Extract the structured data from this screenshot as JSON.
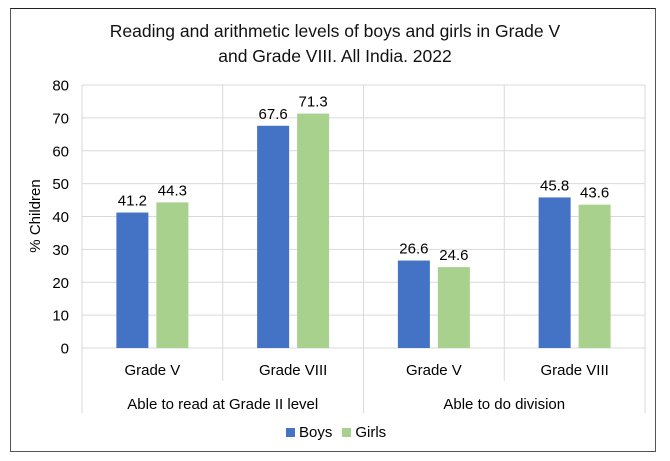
{
  "chart_data": {
    "type": "bar",
    "title": "Reading and arithmetic levels of boys and girls in Grade V and Grade VIII. All India. 2022",
    "title_lines": [
      "Reading and arithmetic levels of boys and girls in Grade V",
      "and Grade VIII. All India. 2022"
    ],
    "xlabel": "",
    "ylabel": "% Children",
    "ylim": [
      0,
      80
    ],
    "yticks": [
      0,
      10,
      20,
      30,
      40,
      50,
      60,
      70,
      80
    ],
    "grid": true,
    "legend_position": "bottom",
    "categories": [
      "Grade V",
      "Grade VIII",
      "Grade V",
      "Grade VIII"
    ],
    "category_groups": [
      {
        "label": "Able to read at Grade II level",
        "categories": [
          "Grade V",
          "Grade VIII"
        ]
      },
      {
        "label": "Able to do division",
        "categories": [
          "Grade V",
          "Grade VIII"
        ]
      }
    ],
    "series": [
      {
        "name": "Boys",
        "color": "#4472C4",
        "values": [
          41.2,
          67.6,
          26.6,
          45.8
        ]
      },
      {
        "name": "Girls",
        "color": "#A9D18E",
        "values": [
          44.3,
          71.3,
          24.6,
          43.6
        ]
      }
    ]
  }
}
